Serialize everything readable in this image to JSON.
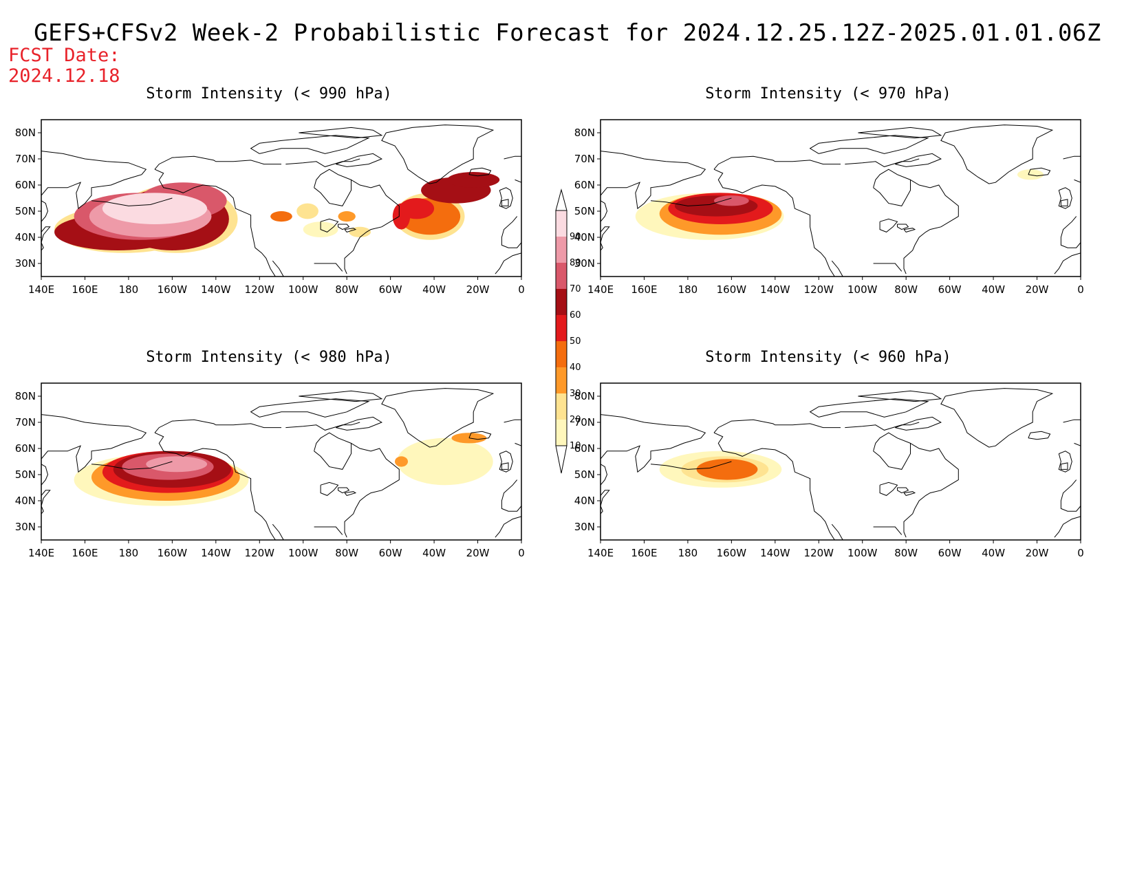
{
  "header": {
    "title": "GEFS+CFSv2 Week-2 Probabilistic Forecast for 2024.12.25.12Z-2025.01.01.06Z",
    "fcst_label": "FCST Date:",
    "fcst_date": "2024.12.18"
  },
  "axes": {
    "lat_ticks": [
      "80N",
      "70N",
      "60N",
      "50N",
      "40N",
      "30N"
    ],
    "lon_ticks": [
      "140E",
      "160E",
      "180",
      "160W",
      "140W",
      "120W",
      "100W",
      "80W",
      "60W",
      "40W",
      "20W",
      "0"
    ]
  },
  "panels": [
    {
      "title": "Storm Intensity (< 990 hPa)"
    },
    {
      "title": "Storm Intensity (< 970 hPa)"
    },
    {
      "title": "Storm Intensity (< 980 hPa)"
    },
    {
      "title": "Storm Intensity (< 960 hPa)"
    }
  ],
  "colorbar": {
    "labels": [
      "10",
      "20",
      "30",
      "40",
      "50",
      "60",
      "70",
      "80",
      "90"
    ],
    "colors": [
      "#fff7bc",
      "#fee391",
      "#fe9929",
      "#f46d0e",
      "#e31a1c",
      "#a50f15",
      "#d9586a",
      "#ee9aa8",
      "#fbdbe1"
    ]
  },
  "colors": {
    "fcst_text": "#e8222a",
    "coastline": "#000000"
  }
}
